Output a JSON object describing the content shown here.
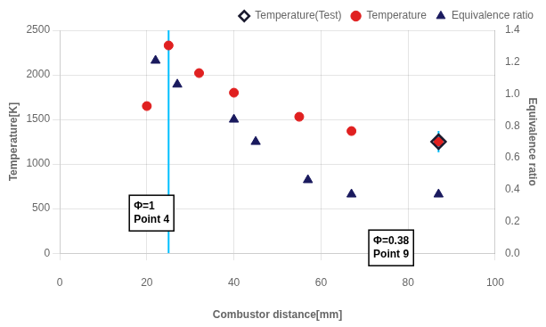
{
  "chart_data": {
    "type": "scatter",
    "xlabel": "Combustor distance[mm]",
    "ylabel": "Temperature[K]",
    "y2label": "Equivalence ratio",
    "xlim": [
      0,
      100
    ],
    "ylim": [
      0,
      2500
    ],
    "y2lim": [
      0.0,
      1.4
    ],
    "xticks": [
      0,
      20,
      40,
      60,
      80,
      100
    ],
    "yticks": [
      0,
      500,
      1000,
      1500,
      2000,
      2500
    ],
    "y2ticks": [
      {
        "value": 0.0,
        "label": "0.0"
      },
      0.2,
      0.4,
      0.6,
      0.8,
      {
        "value": 1.0,
        "label": "1.0"
      },
      1.2,
      1.4
    ],
    "grid": true,
    "legend": "upper right",
    "series": [
      {
        "name": "Temperature",
        "color": "#e02020",
        "marker": "circle",
        "x": [
          20,
          25,
          32,
          40,
          55,
          67,
          87
        ],
        "values": [
          1650,
          2330,
          2020,
          1800,
          1530,
          1370,
          1250
        ]
      },
      {
        "name": "Temperature(Test)",
        "color": "#1a1a2e",
        "marker": "diamond",
        "x": [
          87
        ],
        "values": [
          1250
        ]
      },
      {
        "name": "Equivalence ratio",
        "color": "#1a1a5e",
        "marker": "triangle",
        "axis": "y2",
        "x": [
          22,
          27,
          40,
          45,
          57,
          67,
          87
        ],
        "values": [
          1.21,
          1.06,
          0.84,
          0.7,
          0.46,
          0.37,
          0.37
        ]
      }
    ],
    "vlines": [
      {
        "x": 25,
        "color": "#00bfff"
      },
      {
        "x": 87,
        "low": 1130,
        "high": 1370,
        "color": "#00bfff"
      }
    ],
    "annotations": [
      {
        "text": "Φ=1\nPoint 4",
        "x": 17,
        "y": 450
      },
      {
        "text": "Φ=0.38\nPoint 9",
        "x": 72,
        "y": 60
      }
    ]
  }
}
